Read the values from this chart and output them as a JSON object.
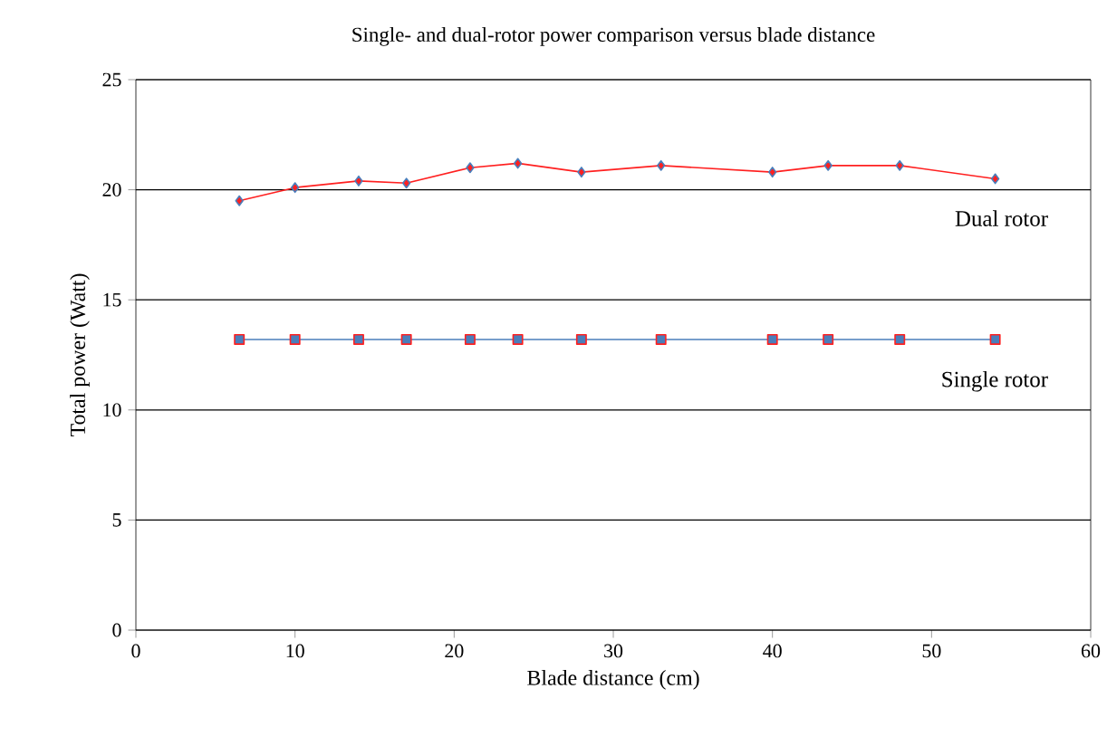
{
  "chart_data": {
    "type": "line",
    "title": "Single- and dual-rotor power comparison versus blade distance",
    "xlabel": "Blade distance (cm)",
    "ylabel": "Total power (Watt)",
    "xlim": [
      0,
      60
    ],
    "xticks": [
      0,
      10,
      20,
      30,
      40,
      50,
      60
    ],
    "ylim": [
      0,
      25
    ],
    "yticks": [
      0,
      5,
      10,
      15,
      20,
      25
    ],
    "grid": "y",
    "series": [
      {
        "name": "Dual rotor",
        "color": "#ff2020",
        "marker": "diamond",
        "x": [
          6.5,
          10,
          14,
          17,
          21,
          24,
          28,
          33,
          40,
          43.5,
          48,
          54
        ],
        "values": [
          19.5,
          20.1,
          20.4,
          20.3,
          21.0,
          21.2,
          20.8,
          21.1,
          20.8,
          21.1,
          21.1,
          20.5
        ]
      },
      {
        "name": "Single rotor",
        "color": "#4a7ebb",
        "marker": "square",
        "x": [
          6.5,
          10,
          14,
          17,
          21,
          24,
          28,
          33,
          40,
          43.5,
          48,
          54
        ],
        "values": [
          13.2,
          13.2,
          13.2,
          13.2,
          13.2,
          13.2,
          13.2,
          13.2,
          13.2,
          13.2,
          13.2,
          13.2
        ]
      }
    ]
  }
}
